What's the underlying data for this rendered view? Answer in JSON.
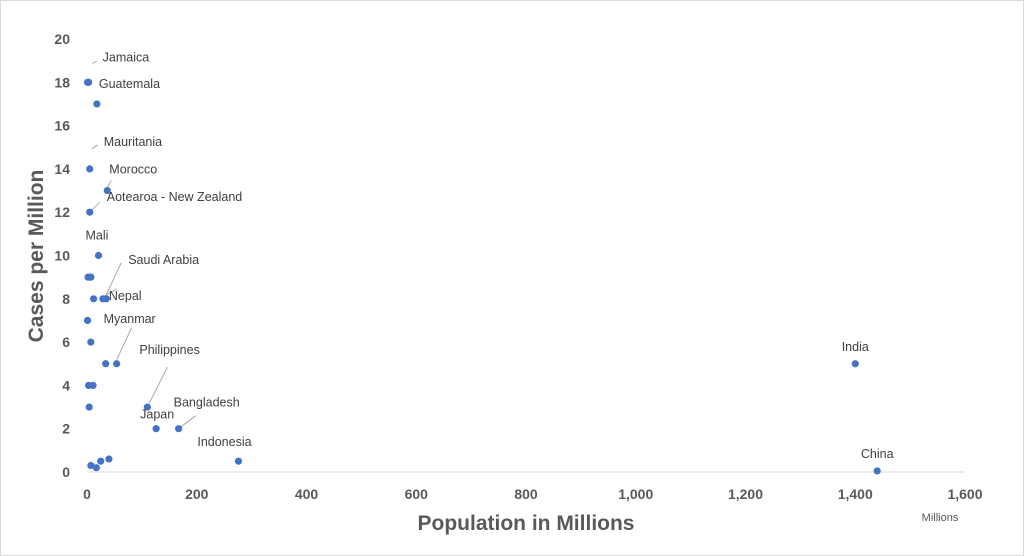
{
  "chart_data": {
    "type": "scatter",
    "title": "",
    "xlabel": "Population in Millions",
    "ylabel": "Cases per Million",
    "x_unit_label": "Millions",
    "xlim": [
      0,
      1600
    ],
    "ylim": [
      0,
      20
    ],
    "x_ticks": [
      "0",
      "200",
      "400",
      "600",
      "800",
      "1,000",
      "1,200",
      "1,400",
      "1,600"
    ],
    "y_ticks": [
      "0",
      "2",
      "4",
      "6",
      "8",
      "10",
      "12",
      "14",
      "16",
      "18",
      "20"
    ],
    "grid": false,
    "legend": "none",
    "marker_color": "#4472c4",
    "points": [
      {
        "x": 3,
        "y": 18,
        "label": "Jamaica"
      },
      {
        "x": 18,
        "y": 17,
        "label": "Guatemala"
      },
      {
        "x": 5,
        "y": 14,
        "label": "Mauritania"
      },
      {
        "x": 37,
        "y": 13,
        "label": "Morocco"
      },
      {
        "x": 5,
        "y": 12,
        "label": "Aotearoa - New Zealand"
      },
      {
        "x": 21,
        "y": 10,
        "label": "Mali"
      },
      {
        "x": 35,
        "y": 8,
        "label": "Saudi Arabia"
      },
      {
        "x": 29,
        "y": 8,
        "label": "Nepal"
      },
      {
        "x": 54,
        "y": 5,
        "label": "Myanmar"
      },
      {
        "x": 110,
        "y": 3,
        "label": "Philippines"
      },
      {
        "x": 126,
        "y": 2,
        "label": "Japan"
      },
      {
        "x": 167,
        "y": 2,
        "label": "Bangladesh"
      },
      {
        "x": 276,
        "y": 0.5,
        "label": "Indonesia"
      },
      {
        "x": 1400,
        "y": 5,
        "label": "India"
      },
      {
        "x": 1440,
        "y": 0.05,
        "label": "China"
      },
      {
        "x": 1,
        "y": 18
      },
      {
        "x": 2,
        "y": 9
      },
      {
        "x": 7,
        "y": 9
      },
      {
        "x": 12,
        "y": 8
      },
      {
        "x": 1,
        "y": 7
      },
      {
        "x": 7,
        "y": 6
      },
      {
        "x": 34,
        "y": 5
      },
      {
        "x": 3,
        "y": 4
      },
      {
        "x": 11,
        "y": 4
      },
      {
        "x": 4,
        "y": 3
      },
      {
        "x": 7,
        "y": 0.3
      },
      {
        "x": 17,
        "y": 0.2
      },
      {
        "x": 25,
        "y": 0.5
      },
      {
        "x": 40,
        "y": 0.6
      }
    ]
  }
}
